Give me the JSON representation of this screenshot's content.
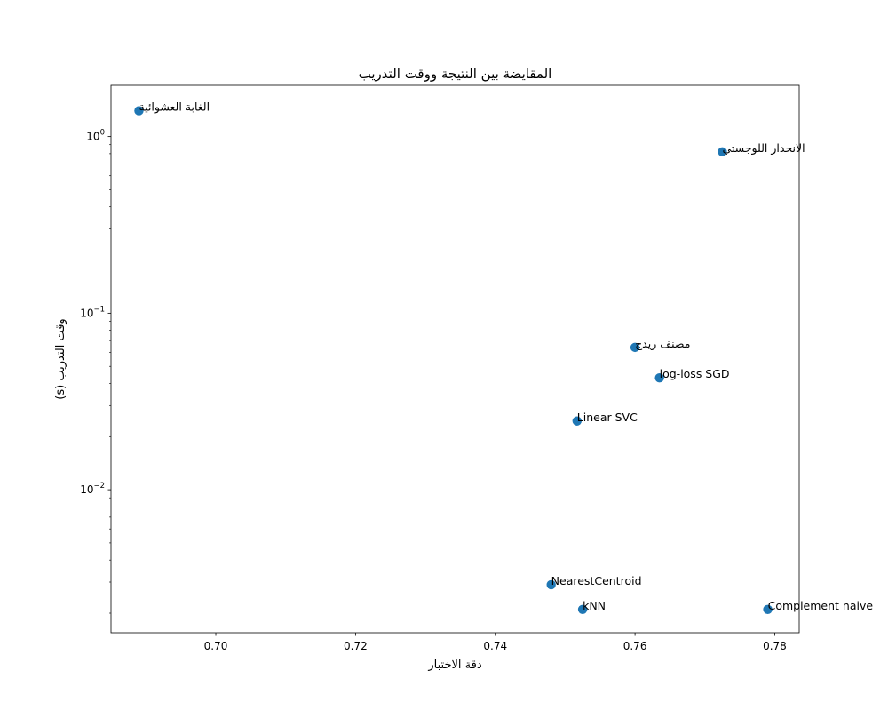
{
  "chart_data": {
    "type": "scatter",
    "title": "المقايضة بين النتيجة ووقت التدريب",
    "xlabel": "دقة الاختبار",
    "ylabel": "وقت التدريب (s)",
    "xlim": [
      0.685,
      0.7835
    ],
    "ylim": [
      0.00155,
      1.95
    ],
    "yscale": "log",
    "grid": false,
    "marker_color": "#1f77b4",
    "x_ticks": [
      {
        "value": 0.7,
        "label": "0.70"
      },
      {
        "value": 0.72,
        "label": "0.72"
      },
      {
        "value": 0.74,
        "label": "0.74"
      },
      {
        "value": 0.76,
        "label": "0.76"
      },
      {
        "value": 0.78,
        "label": "0.78"
      }
    ],
    "y_ticks": [
      {
        "value": 0.01,
        "base": "10",
        "exp": "−2"
      },
      {
        "value": 0.1,
        "base": "10",
        "exp": "−1"
      },
      {
        "value": 1,
        "base": "10",
        "exp": "0"
      }
    ],
    "points": [
      {
        "label": "الغابة العشوائية",
        "x": 0.689,
        "y": 1.4
      },
      {
        "label": "الانحدار اللوجستي",
        "x": 0.7725,
        "y": 0.82
      },
      {
        "label": "مصنف ريدج",
        "x": 0.76,
        "y": 0.064
      },
      {
        "label": "log-loss SGD",
        "x": 0.7635,
        "y": 0.043
      },
      {
        "label": "Linear SVC",
        "x": 0.7517,
        "y": 0.0245
      },
      {
        "label": "NearestCentroid",
        "x": 0.748,
        "y": 0.0029
      },
      {
        "label": "kNN",
        "x": 0.7525,
        "y": 0.0021
      },
      {
        "label": "Complement naive",
        "x": 0.779,
        "y": 0.0021
      }
    ]
  }
}
